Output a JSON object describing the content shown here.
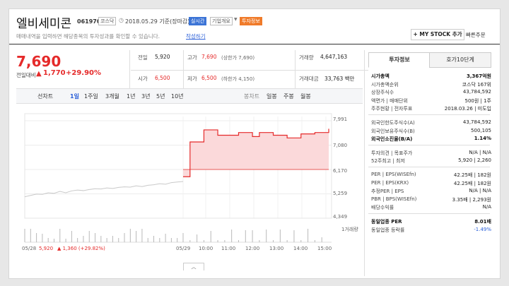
{
  "header": {
    "stock_name": "엘비세미콘",
    "code": "061970",
    "market_tag": "코스닥",
    "date_basis": "2018.05.29 기준(장마감)",
    "realtime_tag": "실시간",
    "overview_tag": "기업개요",
    "invest_tag": "투자정보",
    "notice": "매매내역을 입력하면 해당종목의 투자성과를 확인할 수 있습니다.",
    "notice_link": "작성하기",
    "my_stock_button": "+ MY STOCK 추가",
    "quick_menu": "빠른주문"
  },
  "price": {
    "current": "7,690",
    "change_label": "전일대비",
    "change_amount": "1,770",
    "change_rate": "+29.90%"
  },
  "quote_table": {
    "prev_close_label": "전일",
    "prev_close": "5,920",
    "high_label": "고가",
    "high": "7,690",
    "high_note": "(상한가 7,690)",
    "volume_label": "거래량",
    "volume": "4,647,163",
    "open_label": "시가",
    "open": "6,500",
    "low_label": "저가",
    "low": "6,500",
    "low_note": "(하한가 4,150)",
    "amount_label": "거래대금",
    "amount": "33,763 백만"
  },
  "periods": {
    "items": [
      "선차트",
      "1일",
      "1주일",
      "3개월",
      "1년",
      "3년",
      "5년",
      "10년"
    ],
    "active": "1일",
    "right_items": [
      "봉차트",
      "일봉",
      "주봉",
      "월봉"
    ]
  },
  "chart": {
    "y_ticks": [
      "7,991",
      "7,080",
      "6,170",
      "5,259",
      "4,349"
    ],
    "volume_label": "1거래량",
    "x_ticks": [
      "05/28",
      "05/29",
      "10:00",
      "11:00",
      "12:00",
      "13:00",
      "14:00",
      "15:00"
    ],
    "footer_price": "5,920",
    "footer_change": "▲ 1,360 (+29.82%)",
    "collapse_icon": "chevron-up-icon"
  },
  "chart_data": {
    "type": "line",
    "title": "",
    "ylim": [
      4349,
      7991
    ],
    "series": [
      {
        "values": [
          5150,
          5200,
          5250,
          5240,
          5300,
          5280,
          5350,
          5300,
          5370,
          5400,
          5380,
          5420,
          5450,
          5440,
          5480,
          5460,
          5500,
          5520,
          5510,
          5560,
          5530,
          5580,
          5600,
          5640,
          5620,
          5680,
          5700,
          5720,
          5900,
          7200,
          7200,
          7650,
          7650,
          7450,
          7450,
          7450,
          7550,
          7550,
          7400,
          7550,
          7550,
          7450,
          7450,
          7350,
          7350,
          7500,
          7500,
          7550,
          7550,
          7690
        ]
      }
    ]
  },
  "tabs": {
    "invest_info": "투자정보",
    "quote_10": "호가10단계"
  },
  "invest_info": {
    "rows": [
      {
        "label": "시가총액",
        "value": "3,367억원",
        "bold": true
      },
      {
        "label": "시가총액순위",
        "value": "코스닥 167위"
      },
      {
        "label": "상장주식수",
        "value": "43,784,592"
      },
      {
        "label": "액면가 | 매매단위",
        "value": "500원 | 1주"
      },
      {
        "label": "주주현황 | 전자투표",
        "value": "2018.03.26 | 미도입"
      },
      {
        "label": "외국인한도주식수(A)",
        "value": "43,784,592"
      },
      {
        "label": "외국인보유주식수(B)",
        "value": "500,105"
      },
      {
        "label": "외국인소진율(B/A)",
        "value": "1.14%",
        "bold": true
      },
      {
        "label": "투자의견 | 목표주가",
        "value": "N/A | N/A"
      },
      {
        "label": "52주최고 | 최저",
        "value": "5,920 | 2,260"
      },
      {
        "label": "PER | EPS(WISEfn)",
        "value": "42.25배 | 182원"
      },
      {
        "label": "PER | EPS(KRX)",
        "value": "42.25배 | 182원"
      },
      {
        "label": "추정PER | EPS",
        "value": "N/A | N/A"
      },
      {
        "label": "PBR | BPS(WISEfn)",
        "value": "3.35배 | 2,293원"
      },
      {
        "label": "배당수익률",
        "value": "N/A"
      },
      {
        "label": "동일업종 PER",
        "value": "8.01배",
        "bold": true
      },
      {
        "label": "동일업종 등락률",
        "value": "-1.49%",
        "blue": true
      }
    ]
  },
  "colors": {
    "up": "#e52a2a",
    "down": "#2a5fd8",
    "area": "#fbd9da",
    "prev_line": "#c9c9c9"
  }
}
